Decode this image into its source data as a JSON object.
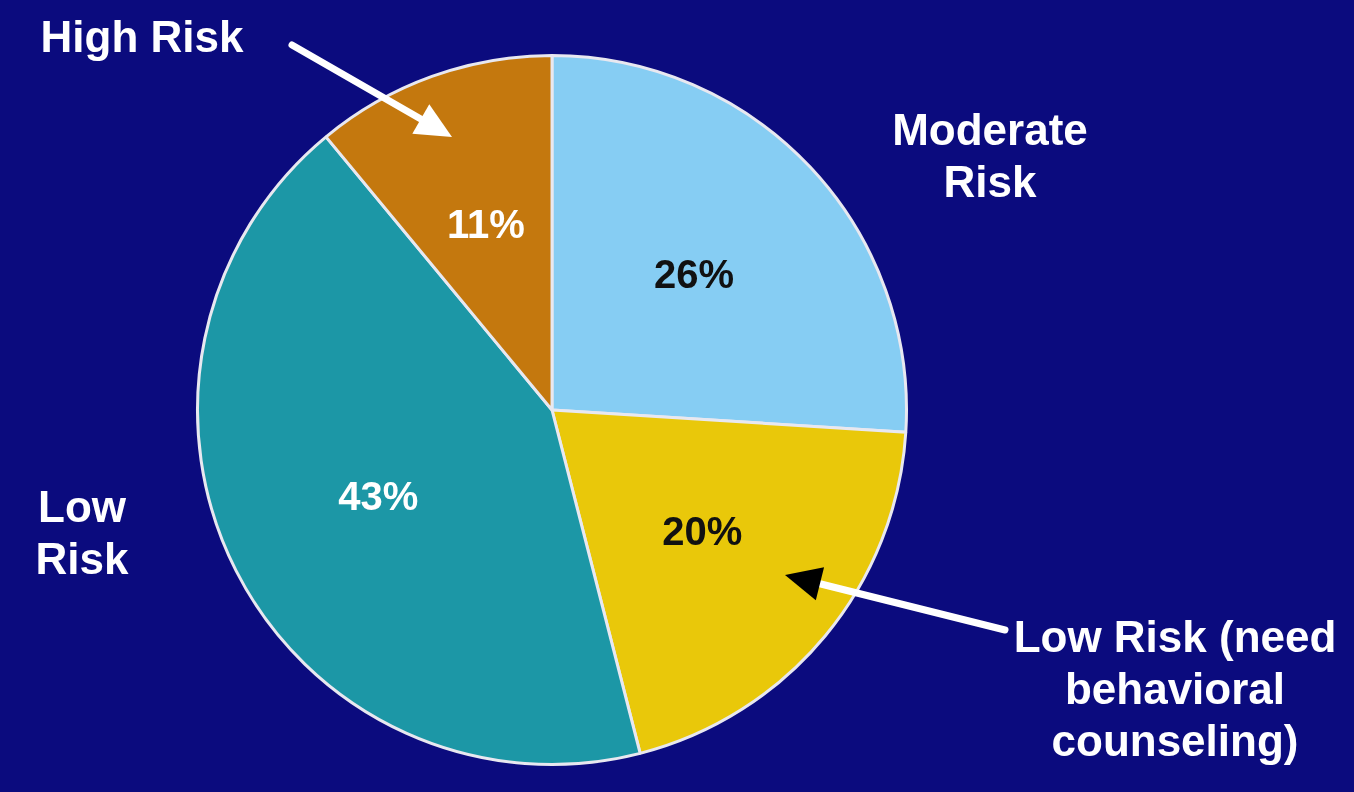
{
  "chart_data": {
    "type": "pie",
    "categories": [
      "Moderate Risk",
      "Low Risk (need behavioral counseling)",
      "Low Risk",
      "High Risk"
    ],
    "values": [
      26,
      20,
      43,
      11
    ],
    "colors": [
      "#86cdf3",
      "#e9c80a",
      "#1c97a6",
      "#c4780e"
    ],
    "value_labels": [
      "26%",
      "20%",
      "43%",
      "11%"
    ],
    "legend": false
  }
}
